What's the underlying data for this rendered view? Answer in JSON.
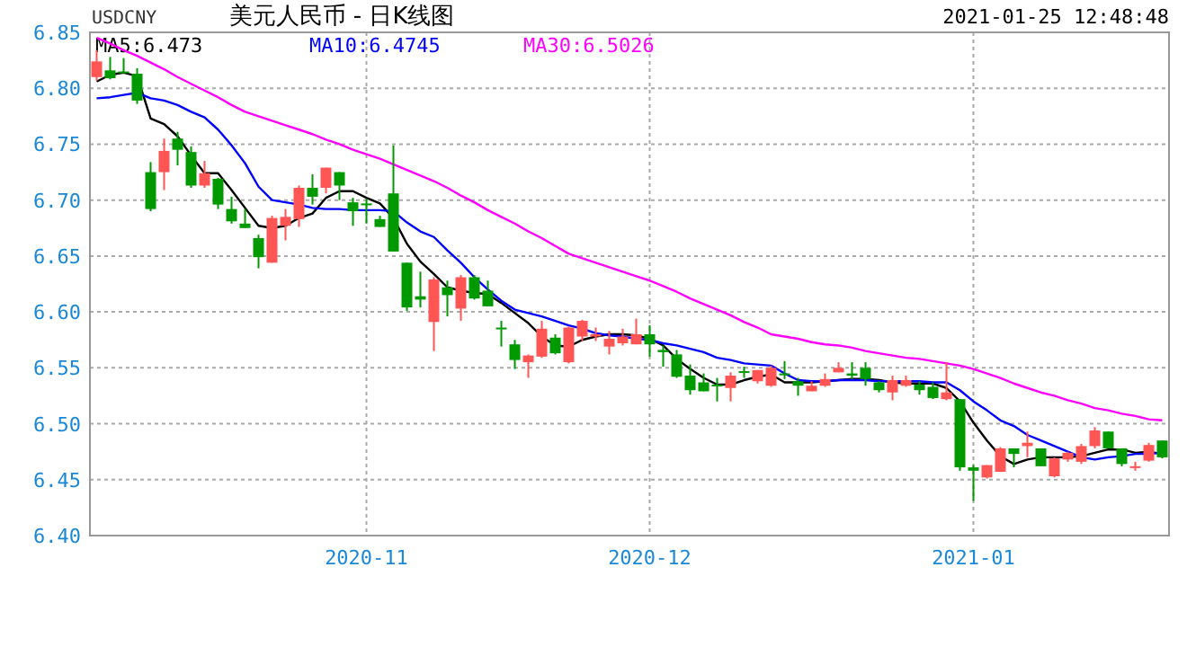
{
  "chart_data": {
    "type": "candlestick",
    "title": "美元人民币 - 日K线图",
    "annotations": [
      "USDCNY",
      "2021-01-25 12:48:48"
    ],
    "categories": [
      null,
      null,
      null,
      null,
      null,
      null,
      null,
      null,
      null,
      null,
      null,
      null,
      null,
      null,
      null,
      null,
      null,
      null,
      null,
      null,
      "2020-11",
      null,
      null,
      null,
      null,
      null,
      null,
      null,
      null,
      null,
      null,
      null,
      null,
      null,
      null,
      null,
      null,
      null,
      null,
      null,
      null,
      "2020-12",
      null,
      null,
      null,
      null,
      null,
      null,
      null,
      null,
      null,
      null,
      null,
      null,
      null,
      null,
      null,
      null,
      null,
      null,
      null,
      null,
      null,
      null,
      null,
      "2021-01",
      null,
      null,
      null,
      null,
      null,
      null,
      null,
      null,
      null,
      null,
      null,
      null,
      null,
      null
    ],
    "ohlc": [
      [
        6.81,
        6.834,
        6.807,
        6.824
      ],
      [
        6.816,
        6.828,
        6.808,
        6.809
      ],
      [
        6.815,
        6.827,
        6.814,
        6.814
      ],
      [
        6.813,
        6.818,
        6.786,
        6.789
      ],
      [
        6.725,
        6.734,
        6.69,
        6.692
      ],
      [
        6.725,
        6.755,
        6.709,
        6.744
      ],
      [
        6.755,
        6.761,
        6.731,
        6.745
      ],
      [
        6.743,
        6.748,
        6.711,
        6.713
      ],
      [
        6.713,
        6.735,
        6.711,
        6.724
      ],
      [
        6.719,
        6.72,
        6.692,
        6.696
      ],
      [
        6.692,
        6.703,
        6.679,
        6.681
      ],
      [
        6.679,
        6.692,
        6.675,
        6.675
      ],
      [
        6.666,
        6.669,
        6.639,
        6.649
      ],
      [
        6.644,
        6.686,
        6.644,
        6.684
      ],
      [
        6.677,
        6.692,
        6.664,
        6.685
      ],
      [
        6.683,
        6.713,
        6.676,
        6.711
      ],
      [
        6.711,
        6.723,
        6.696,
        6.703
      ],
      [
        6.711,
        6.729,
        6.706,
        6.729
      ],
      [
        6.725,
        6.725,
        6.7,
        6.713
      ],
      [
        6.698,
        6.702,
        6.677,
        6.69
      ],
      [
        6.697,
        6.701,
        6.679,
        6.696
      ],
      [
        6.683,
        6.686,
        6.676,
        6.676
      ],
      [
        6.706,
        6.749,
        6.654,
        6.654
      ],
      [
        6.644,
        6.644,
        6.601,
        6.604
      ],
      [
        6.614,
        6.636,
        6.604,
        6.611
      ],
      [
        6.591,
        6.631,
        6.565,
        6.629
      ],
      [
        6.622,
        6.628,
        6.596,
        6.615
      ],
      [
        6.603,
        6.633,
        6.592,
        6.631
      ],
      [
        6.631,
        6.633,
        6.611,
        6.612
      ],
      [
        6.619,
        6.628,
        6.605,
        6.605
      ],
      [
        6.586,
        6.592,
        6.569,
        6.585
      ],
      [
        6.571,
        6.575,
        6.549,
        6.557
      ],
      [
        6.555,
        6.562,
        6.541,
        6.561
      ],
      [
        6.56,
        6.592,
        6.559,
        6.585
      ],
      [
        6.577,
        6.58,
        6.562,
        6.563
      ],
      [
        6.555,
        6.587,
        6.554,
        6.586
      ],
      [
        6.578,
        6.593,
        6.574,
        6.592
      ],
      [
        6.578,
        6.586,
        6.574,
        6.58
      ],
      [
        6.569,
        6.583,
        6.562,
        6.576
      ],
      [
        6.572,
        6.585,
        6.57,
        6.578
      ],
      [
        6.571,
        6.594,
        6.571,
        6.58
      ],
      [
        6.58,
        6.588,
        6.56,
        6.571
      ],
      [
        6.566,
        6.57,
        6.551,
        6.564
      ],
      [
        6.562,
        6.566,
        6.541,
        6.542
      ],
      [
        6.543,
        6.553,
        6.526,
        6.53
      ],
      [
        6.537,
        6.545,
        6.529,
        6.529
      ],
      [
        6.535,
        6.541,
        6.52,
        6.534
      ],
      [
        6.532,
        6.546,
        6.52,
        6.543
      ],
      [
        6.547,
        6.551,
        6.541,
        6.546
      ],
      [
        6.538,
        6.548,
        6.536,
        6.548
      ],
      [
        6.534,
        6.552,
        6.533,
        6.55
      ],
      [
        6.545,
        6.556,
        6.54,
        6.544
      ],
      [
        6.538,
        6.541,
        6.525,
        6.534
      ],
      [
        6.529,
        6.538,
        6.529,
        6.534
      ],
      [
        6.534,
        6.545,
        6.533,
        6.54
      ],
      [
        6.546,
        6.555,
        6.546,
        6.55
      ],
      [
        6.545,
        6.555,
        6.54,
        6.543
      ],
      [
        6.55,
        6.555,
        6.534,
        6.54
      ],
      [
        6.537,
        6.538,
        6.528,
        6.53
      ],
      [
        6.528,
        6.543,
        6.521,
        6.539
      ],
      [
        6.534,
        6.543,
        6.533,
        6.539
      ],
      [
        6.535,
        6.538,
        6.526,
        6.53
      ],
      [
        6.533,
        6.537,
        6.522,
        6.523
      ],
      [
        6.522,
        6.555,
        6.521,
        6.528
      ],
      [
        6.522,
        6.522,
        6.458,
        6.461
      ],
      [
        6.461,
        6.463,
        6.431,
        6.458
      ],
      [
        6.452,
        6.463,
        6.451,
        6.463
      ],
      [
        6.457,
        6.479,
        6.457,
        6.478
      ],
      [
        6.478,
        6.478,
        6.461,
        6.473
      ],
      [
        6.48,
        6.493,
        6.47,
        6.483
      ],
      [
        6.478,
        6.478,
        6.462,
        6.462
      ],
      [
        6.453,
        6.47,
        6.452,
        6.469
      ],
      [
        6.468,
        6.475,
        6.466,
        6.474
      ],
      [
        6.466,
        6.482,
        6.464,
        6.48
      ],
      [
        6.48,
        6.497,
        6.478,
        6.494
      ],
      [
        6.493,
        6.493,
        6.478,
        6.478
      ],
      [
        6.478,
        6.478,
        6.462,
        6.464
      ],
      [
        6.461,
        6.466,
        6.458,
        6.462
      ],
      [
        6.467,
        6.483,
        6.466,
        6.481
      ],
      [
        6.485,
        6.485,
        6.469,
        6.47
      ]
    ],
    "colors": [
      "#ff5555",
      "#009900",
      "#009900",
      "#009900",
      "#009900",
      "#ff5555",
      "#009900",
      "#009900",
      "#ff5555",
      "#009900",
      "#009900",
      "#009900",
      "#009900",
      "#ff5555",
      "#ff5555",
      "#ff5555",
      "#009900",
      "#ff5555",
      "#009900",
      "#009900",
      "#009900",
      "#009900",
      "#009900",
      "#009900",
      "#009900",
      "#ff5555",
      "#009900",
      "#ff5555",
      "#009900",
      "#009900",
      "#009900",
      "#009900",
      "#ff5555",
      "#ff5555",
      "#009900",
      "#ff5555",
      "#ff5555",
      "#ff5555",
      "#ff5555",
      "#ff5555",
      "#ff5555",
      "#009900",
      "#009900",
      "#009900",
      "#009900",
      "#009900",
      "#009900",
      "#ff5555",
      "#009900",
      "#ff5555",
      "#ff5555",
      "#009900",
      "#009900",
      "#ff5555",
      "#ff5555",
      "#ff5555",
      "#009900",
      "#009900",
      "#009900",
      "#ff5555",
      "#ff5555",
      "#009900",
      "#009900",
      "#ff5555",
      "#009900",
      "#009900",
      "#ff5555",
      "#ff5555",
      "#009900",
      "#ff5555",
      "#009900",
      "#ff5555",
      "#ff5555",
      "#ff5555",
      "#ff5555",
      "#009900",
      "#009900",
      "#ff5555",
      "#ff5555",
      "#009900"
    ],
    "series": [
      {
        "type": "line",
        "name": "MA5:6.473",
        "color": "#000000",
        "values": [
          6.806,
          6.812,
          6.814,
          6.811,
          6.773,
          6.768,
          6.757,
          6.74,
          6.724,
          6.724,
          6.709,
          6.693,
          6.677,
          6.675,
          6.677,
          6.684,
          6.688,
          6.702,
          6.708,
          6.708,
          6.702,
          6.697,
          6.684,
          6.661,
          6.645,
          6.634,
          6.622,
          6.619,
          6.617,
          6.616,
          6.608,
          6.599,
          6.59,
          6.578,
          6.57,
          6.569,
          6.575,
          6.578,
          6.58,
          6.58,
          6.579,
          6.576,
          6.57,
          6.558,
          6.549,
          6.541,
          6.535,
          6.535,
          6.539,
          6.542,
          6.544,
          6.537,
          6.537,
          6.537,
          6.538,
          6.539,
          6.54,
          6.54,
          6.539,
          6.537,
          6.536,
          6.536,
          6.536,
          6.532,
          6.52,
          6.501,
          6.485,
          6.471,
          6.464,
          6.468,
          6.47,
          6.47,
          6.47,
          6.471,
          6.474,
          6.477,
          6.477,
          6.474,
          6.475,
          6.473
        ]
      },
      {
        "type": "line",
        "name": "MA10:6.4745",
        "color": "#0000ff",
        "values": [
          6.791,
          6.792,
          6.794,
          6.796,
          6.791,
          6.789,
          6.785,
          6.779,
          6.774,
          6.763,
          6.749,
          6.733,
          6.712,
          6.7,
          6.698,
          6.696,
          6.693,
          6.692,
          6.692,
          6.691,
          6.691,
          6.691,
          6.69,
          6.68,
          6.672,
          6.667,
          6.655,
          6.644,
          6.631,
          6.62,
          6.61,
          6.602,
          6.599,
          6.596,
          6.592,
          6.588,
          6.585,
          6.581,
          6.579,
          6.578,
          6.576,
          6.575,
          6.572,
          6.57,
          6.567,
          6.564,
          6.559,
          6.557,
          6.554,
          6.553,
          6.552,
          6.545,
          6.539,
          6.538,
          6.538,
          6.539,
          6.539,
          6.539,
          6.538,
          6.538,
          6.538,
          6.538,
          6.537,
          6.537,
          6.53,
          6.52,
          6.512,
          6.503,
          6.498,
          6.49,
          6.485,
          6.48,
          6.475,
          6.47,
          6.468,
          6.47,
          6.471,
          6.473,
          6.473,
          6.474
        ]
      },
      {
        "type": "line",
        "name": "MA30:6.5026",
        "color": "#ff00ff",
        "values": [
          6.845,
          6.84,
          6.834,
          6.829,
          6.823,
          6.817,
          6.81,
          6.804,
          6.798,
          6.792,
          6.785,
          6.779,
          6.775,
          6.771,
          6.767,
          6.763,
          6.759,
          6.754,
          6.75,
          6.745,
          6.741,
          6.737,
          6.732,
          6.727,
          6.722,
          6.717,
          6.711,
          6.704,
          6.698,
          6.691,
          6.685,
          6.679,
          6.672,
          6.666,
          6.659,
          6.652,
          6.648,
          6.644,
          6.64,
          6.636,
          6.632,
          6.628,
          6.623,
          6.618,
          6.612,
          6.607,
          6.602,
          6.597,
          6.591,
          6.586,
          6.58,
          6.578,
          6.576,
          6.573,
          6.571,
          6.57,
          6.568,
          6.565,
          6.563,
          6.561,
          6.559,
          6.558,
          6.556,
          6.554,
          6.552,
          6.549,
          6.545,
          6.541,
          6.536,
          6.532,
          6.528,
          6.525,
          6.521,
          6.518,
          6.514,
          6.512,
          6.509,
          6.507,
          6.504,
          6.503
        ]
      }
    ],
    "ylim": [
      6.4,
      6.85
    ],
    "yticks": [
      {
        "value": 6.4,
        "label": "6.40"
      },
      6.45,
      {
        "value": 6.5,
        "label": "6.50"
      },
      6.55,
      {
        "value": 6.6,
        "label": "6.60"
      },
      6.65,
      {
        "value": 6.7,
        "label": "6.70"
      },
      6.75,
      {
        "value": 6.8,
        "label": "6.80"
      },
      6.85
    ],
    "grid": true,
    "legend": "top left"
  }
}
